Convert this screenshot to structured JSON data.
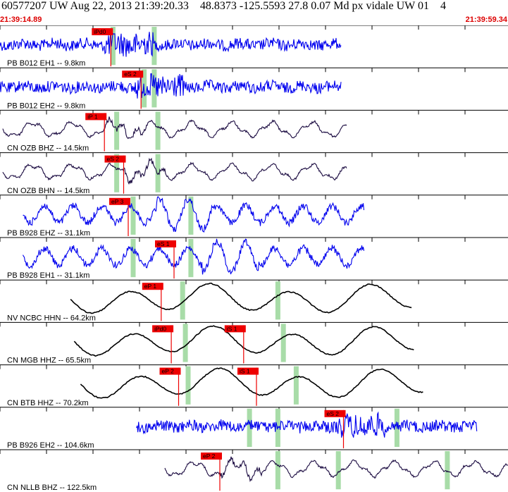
{
  "header": {
    "title": "60577207 UW Aug 22, 2013 21:39:20.33    48.8373 -125.5593 27.8 0.07 Md px vidale UW 01    4",
    "time_start": "21:39:14.89",
    "time_end": "21:39:59.34"
  },
  "colors": {
    "broadband_trace": "#0000ee",
    "velocity_trace": "#000000",
    "short_period_trace": "#1a0a40",
    "pick_flag": "#ee0000",
    "pick_window": "#a8dca8",
    "tick": "#000000",
    "background": "#ffffff"
  },
  "chart_data": {
    "type": "line",
    "title": "60577207 UW Aug 22, 2013 21:39:20.33    48.8373 -125.5593 27.8 0.07 Md px vidale UW 01    4",
    "x_range": [
      "21:39:14.89",
      "21:39:59.34"
    ],
    "grid": false,
    "legend": "none",
    "channels": [
      {
        "label": "PB B012 EH1 -- 9.8km",
        "picks": [
          {
            "label": "iPd0",
            "t": 12.1
          }
        ],
        "trace_start": 0.0,
        "trace_end": 37.3
      },
      {
        "label": "PB B012 EH2 -- 9.8km",
        "picks": [
          {
            "label": "eS 2",
            "t": 15.4
          }
        ],
        "trace_start": 0.0,
        "trace_end": 37.3
      },
      {
        "label": "CN OZB BHZ -- 14.5km",
        "picks": [
          {
            "label": "iP 1",
            "t": 11.4
          }
        ],
        "trace_start": 0.3,
        "trace_end": 37.9
      },
      {
        "label": "CN OZB BHN -- 14.5km",
        "picks": [
          {
            "label": "eS 2",
            "t": 13.5
          }
        ],
        "trace_start": 0.3,
        "trace_end": 37.9
      },
      {
        "label": "PB B928 EHZ -- 31.1km",
        "picks": [
          {
            "label": "eP 3",
            "t": 14.0
          }
        ],
        "trace_start": 2.5,
        "trace_end": 39.8
      },
      {
        "label": "PB B928 EH1 -- 31.1km",
        "picks": [
          {
            "label": "eS 1",
            "t": 19.0
          }
        ],
        "trace_start": 2.5,
        "trace_end": 39.8
      },
      {
        "label": "NV NCBC HHN -- 64.2km",
        "picks": [
          {
            "label": "eP 1",
            "t": 17.6
          }
        ],
        "trace_start": 7.7,
        "trace_end": 45.0
      },
      {
        "label": "CN MGB HHZ -- 65.5km",
        "picks": [
          {
            "label": "iPd0",
            "t": 18.7
          },
          {
            "label": "iS 1",
            "t": 26.6
          }
        ],
        "trace_start": 8.1,
        "trace_end": 45.2
      },
      {
        "label": "CN BTB HHZ -- 70.2km",
        "picks": [
          {
            "label": "eP 2",
            "t": 19.5
          },
          {
            "label": "iS 1",
            "t": 28.0
          }
        ],
        "trace_start": 8.8,
        "trace_end": 46.2
      },
      {
        "label": "PB B926 EH2 -- 104.6km",
        "picks": [
          {
            "label": "eS 2",
            "t": 37.5
          }
        ],
        "trace_start": 14.9,
        "trace_end": 52.1
      },
      {
        "label": "CN NLLB BHZ -- 122.5km",
        "picks": [
          {
            "label": "eP 2",
            "t": 24.0
          }
        ],
        "trace_start": 18.0,
        "trace_end": 55.5
      }
    ]
  }
}
